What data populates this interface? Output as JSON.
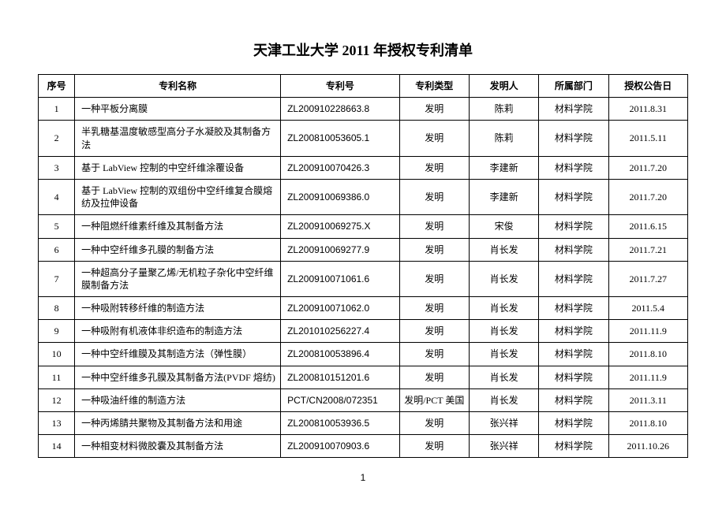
{
  "title": "天津工业大学 2011 年授权专利清单",
  "footer": "1",
  "columns": [
    "序号",
    "专利名称",
    "专利号",
    "专利类型",
    "发明人",
    "所属部门",
    "授权公告日"
  ],
  "rows": [
    {
      "seq": "1",
      "name": "一种平板分离膜",
      "no": "ZL200910228663.8",
      "type": "发明",
      "inventor": "陈莉",
      "dept": "材料学院",
      "date": "2011.8.31"
    },
    {
      "seq": "2",
      "name": "半乳糖基温度敏感型高分子水凝胶及其制备方法",
      "no": "ZL200810053605.1",
      "type": "发明",
      "inventor": "陈莉",
      "dept": "材料学院",
      "date": "2011.5.11"
    },
    {
      "seq": "3",
      "name": "基于 LabView 控制的中空纤维涂覆设备",
      "no": "ZL200910070426.3",
      "type": "发明",
      "inventor": "李建新",
      "dept": "材料学院",
      "date": "2011.7.20"
    },
    {
      "seq": "4",
      "name": "基于 LabView 控制的双组份中空纤维复合膜熔纺及拉伸设备",
      "no": "ZL200910069386.0",
      "type": "发明",
      "inventor": "李建新",
      "dept": "材料学院",
      "date": "2011.7.20"
    },
    {
      "seq": "5",
      "name": "一种阻燃纤维素纤维及其制备方法",
      "no": "ZL200910069275.X",
      "type": "发明",
      "inventor": "宋俊",
      "dept": "材料学院",
      "date": "2011.6.15"
    },
    {
      "seq": "6",
      "name": "一种中空纤维多孔膜的制备方法",
      "no": "ZL200910069277.9",
      "type": "发明",
      "inventor": "肖长发",
      "dept": "材料学院",
      "date": "2011.7.21"
    },
    {
      "seq": "7",
      "name": "一种超高分子量聚乙烯/无机粒子杂化中空纤维膜制备方法",
      "no": "ZL200910071061.6",
      "type": "发明",
      "inventor": "肖长发",
      "dept": "材料学院",
      "date": "2011.7.27"
    },
    {
      "seq": "8",
      "name": "一种吸附转移纤维的制造方法",
      "no": "ZL200910071062.0",
      "type": "发明",
      "inventor": "肖长发",
      "dept": "材料学院",
      "date": "2011.5.4"
    },
    {
      "seq": "9",
      "name": "一种吸附有机液体非织造布的制造方法",
      "no": "ZL201010256227.4",
      "type": "发明",
      "inventor": "肖长发",
      "dept": "材料学院",
      "date": "2011.11.9"
    },
    {
      "seq": "10",
      "name": "一种中空纤维膜及其制造方法（弹性膜）",
      "no": "ZL200810053896.4",
      "type": "发明",
      "inventor": "肖长发",
      "dept": "材料学院",
      "date": "2011.8.10"
    },
    {
      "seq": "11",
      "name": "一种中空纤维多孔膜及其制备方法(PVDF 熔纺)",
      "no": "ZL200810151201.6",
      "type": "发明",
      "inventor": "肖长发",
      "dept": "材料学院",
      "date": "2011.11.9"
    },
    {
      "seq": "12",
      "name": "一种吸油纤维的制造方法",
      "no": "PCT/CN2008/072351",
      "type": "发明/PCT 美国",
      "inventor": "肖长发",
      "dept": "材料学院",
      "date": "2011.3.11"
    },
    {
      "seq": "13",
      "name": "一种丙烯腈共聚物及其制备方法和用途",
      "no": "ZL200810053936.5",
      "type": "发明",
      "inventor": "张兴祥",
      "dept": "材料学院",
      "date": "2011.8.10"
    },
    {
      "seq": "14",
      "name": "一种相变材料微胶囊及其制备方法",
      "no": "ZL200910070903.6",
      "type": "发明",
      "inventor": "张兴祥",
      "dept": "材料学院",
      "date": "2011.10.26"
    }
  ]
}
